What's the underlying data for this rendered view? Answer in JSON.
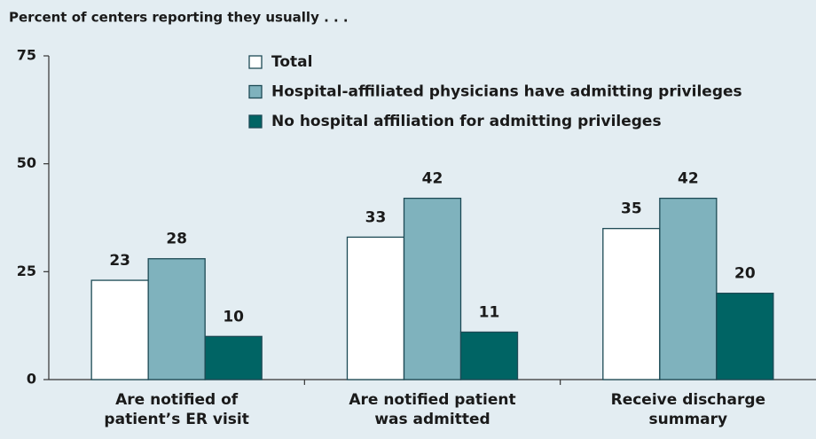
{
  "chart_data": {
    "type": "bar",
    "title": "Percent of centers reporting they usually . . .",
    "categories": [
      "Are notified of patient’s ER visit",
      "Are notified patient was admitted",
      "Receive discharge summary"
    ],
    "series": [
      {
        "name": "Total",
        "color": "#ffffff",
        "values": [
          23,
          33,
          35
        ]
      },
      {
        "name": "Hospital-affiliated physicians have admitting privileges",
        "color": "#7fb2bd",
        "values": [
          28,
          42,
          42
        ]
      },
      {
        "name": "No hospital affiliation for admitting privileges",
        "color": "#006464",
        "values": [
          10,
          11,
          20
        ]
      }
    ],
    "ylim": [
      0,
      75
    ],
    "yticks": [
      0,
      25,
      50,
      75
    ],
    "legend": "top"
  }
}
